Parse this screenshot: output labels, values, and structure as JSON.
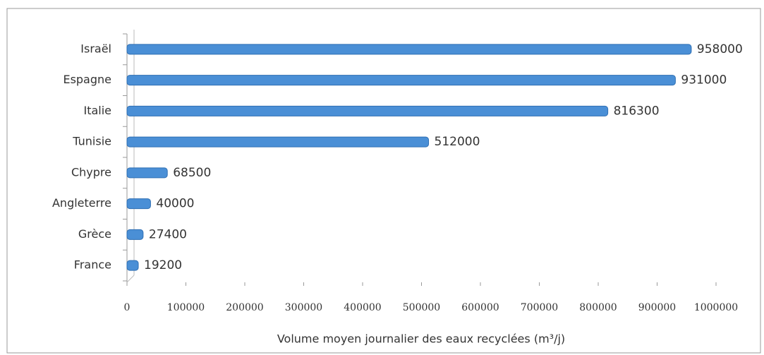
{
  "chart_data": {
    "type": "hbar",
    "x_label": "Volume moyen journalier des eaux recyclées (m³/j)",
    "categories": [
      "Israël",
      "Espagne",
      "Italie",
      "Tunisie",
      "Chypre",
      "Angleterre",
      "Grèce",
      "France"
    ],
    "values": [
      958000,
      931000,
      816300,
      512000,
      68500,
      40000,
      27400,
      19200
    ],
    "color": "#4a8fd6",
    "xlim": [
      0,
      1000000
    ],
    "xticks": [
      0,
      100000,
      200000,
      300000,
      400000,
      500000,
      600000,
      700000,
      800000,
      900000,
      1000000
    ],
    "grid": false
  }
}
